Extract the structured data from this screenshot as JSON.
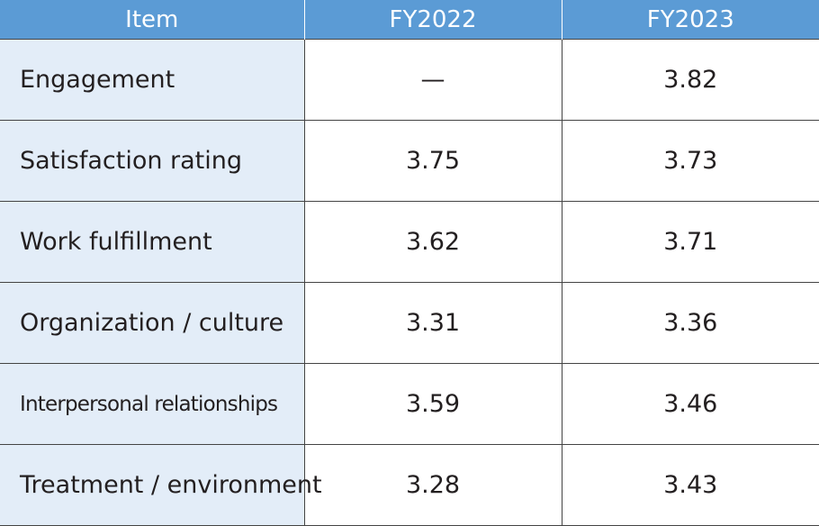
{
  "table": {
    "header": [
      "Item",
      "FY2022",
      "FY2023"
    ],
    "rows": [
      [
        "Engagement",
        "—",
        "3.82"
      ],
      [
        "Satisfaction rating",
        "3.75",
        "3.73"
      ],
      [
        "Work fulfillment",
        "3.62",
        "3.71"
      ],
      [
        "Organization / culture",
        "3.31",
        "3.36"
      ],
      [
        "Interpersonal relationships",
        "3.59",
        "3.46"
      ],
      [
        "Treatment / environment",
        "3.28",
        "3.43"
      ]
    ]
  }
}
